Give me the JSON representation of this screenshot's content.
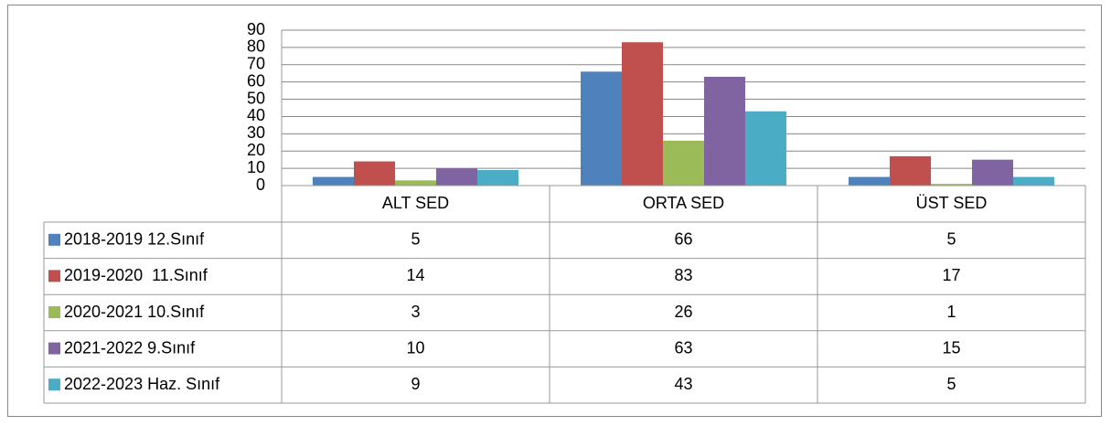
{
  "chart_data": {
    "type": "bar",
    "categories": [
      "ALT SED",
      "ORTA SED",
      "ÜST SED"
    ],
    "series": [
      {
        "name": "2018-2019 12.Sınıf",
        "color": "#4f81bd",
        "values": [
          5,
          66,
          5
        ]
      },
      {
        "name": "2019-2020  11.Sınıf",
        "color": "#c0504d",
        "values": [
          14,
          83,
          17
        ]
      },
      {
        "name": "2020-2021 10.Sınıf",
        "color": "#9bbb59",
        "values": [
          3,
          26,
          1
        ]
      },
      {
        "name": "2021-2022 9.Sınıf",
        "color": "#8064a2",
        "values": [
          10,
          63,
          15
        ]
      },
      {
        "name": "2022-2023 Haz. Sınıf",
        "color": "#4bacc6",
        "values": [
          9,
          43,
          5
        ]
      }
    ],
    "ylim": [
      0,
      90
    ],
    "yticks": [
      0,
      10,
      20,
      30,
      40,
      50,
      60,
      70,
      80,
      90
    ],
    "grid": true
  }
}
